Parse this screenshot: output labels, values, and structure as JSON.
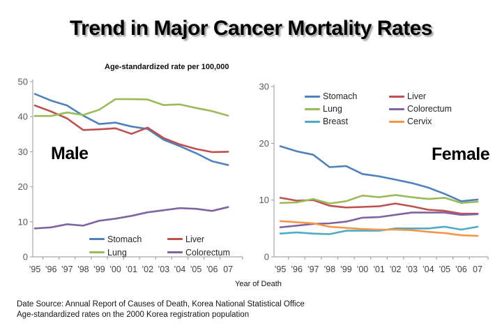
{
  "title": "Trend in Major Cancer Mortality Rates",
  "subtitle": "Age-standardized rate per 100,000",
  "xlabel": "Year of Death",
  "footer": {
    "line1": "Date Source: Annual Report of Causes of Death, Korea National Statistical Office",
    "line2": "Age-standardized rates on the 2000 Korea registration population"
  },
  "palette": {
    "stomach": "#4F81BD",
    "liver": "#C0504D",
    "lung": "#9BBB59",
    "colorectum": "#8064A2",
    "breast": "#4BACC6",
    "cervix": "#F79646",
    "axis": "#a6a6a6"
  },
  "chart_data": [
    {
      "type": "line",
      "group_label": "Male",
      "xlabel": "Year of Death",
      "ylabel_note": "Age-standardized rate per 100,000",
      "ylim": [
        0,
        50
      ],
      "ytick_step": 10,
      "grid": false,
      "legend_position": "inside-bottom",
      "categories": [
        "’95",
        "’96",
        "’97",
        "’98",
        "’99",
        "’00",
        "’01",
        "’02",
        "’03",
        "’04",
        "’05",
        "’06",
        "07"
      ],
      "series": [
        {
          "name": "Stomach",
          "color": "#4F81BD",
          "values": [
            46.5,
            44.6,
            43.2,
            40.3,
            37.9,
            38.3,
            37.2,
            36.5,
            33.4,
            31.6,
            29.6,
            27.3,
            26.2
          ]
        },
        {
          "name": "Liver",
          "color": "#C0504D",
          "values": [
            43.2,
            41.5,
            39.5,
            36.2,
            36.4,
            36.7,
            35.1,
            36.9,
            33.9,
            32.1,
            30.8,
            29.9,
            30.0
          ]
        },
        {
          "name": "Lung",
          "color": "#9BBB59",
          "values": [
            40.2,
            40.2,
            41.2,
            40.5,
            42.0,
            45.0,
            45.0,
            44.9,
            43.3,
            43.5,
            42.5,
            41.6,
            40.3
          ]
        },
        {
          "name": "Colorectum",
          "color": "#8064A2",
          "values": [
            8.1,
            8.4,
            9.3,
            8.9,
            10.3,
            10.9,
            11.7,
            12.7,
            13.3,
            13.9,
            13.7,
            13.1,
            14.2
          ]
        }
      ]
    },
    {
      "type": "line",
      "group_label": "Female",
      "xlabel": "Year of Death",
      "ylabel_note": "Age-standardized rate per 100,000",
      "ylim": [
        0,
        30
      ],
      "ytick_step": 10,
      "grid": false,
      "legend_position": "inside-top",
      "categories": [
        "’95",
        "’96",
        "’97",
        "’98",
        "’99",
        "’00",
        "’01",
        "’02",
        "’03",
        "’04",
        "’05",
        "’06",
        "07"
      ],
      "series": [
        {
          "name": "Stomach",
          "color": "#4F81BD",
          "values": [
            19.5,
            18.6,
            18.0,
            15.8,
            16.0,
            14.6,
            14.2,
            13.6,
            13.0,
            12.2,
            11.1,
            9.8,
            10.1
          ]
        },
        {
          "name": "Liver",
          "color": "#C0504D",
          "values": [
            10.4,
            9.9,
            10.0,
            9.0,
            8.7,
            8.8,
            8.9,
            9.4,
            8.9,
            8.3,
            8.1,
            7.6,
            7.6
          ]
        },
        {
          "name": "Lung",
          "color": "#9BBB59",
          "values": [
            9.5,
            9.6,
            10.2,
            9.4,
            9.8,
            10.8,
            10.5,
            10.9,
            10.5,
            10.2,
            10.4,
            9.5,
            9.7
          ]
        },
        {
          "name": "Colorectum",
          "color": "#8064A2",
          "values": [
            5.2,
            5.5,
            5.8,
            5.9,
            6.2,
            6.9,
            7.0,
            7.4,
            7.8,
            7.8,
            7.8,
            7.4,
            7.5
          ]
        },
        {
          "name": "Breast",
          "color": "#4BACC6",
          "values": [
            4.1,
            4.3,
            4.1,
            4.0,
            4.6,
            4.6,
            4.6,
            5.0,
            5.0,
            5.0,
            5.3,
            4.8,
            5.3
          ]
        },
        {
          "name": "Cervix",
          "color": "#F79646",
          "values": [
            6.3,
            6.1,
            5.9,
            5.3,
            5.1,
            4.9,
            4.8,
            4.8,
            4.7,
            4.4,
            4.2,
            3.8,
            3.7
          ]
        }
      ]
    }
  ]
}
